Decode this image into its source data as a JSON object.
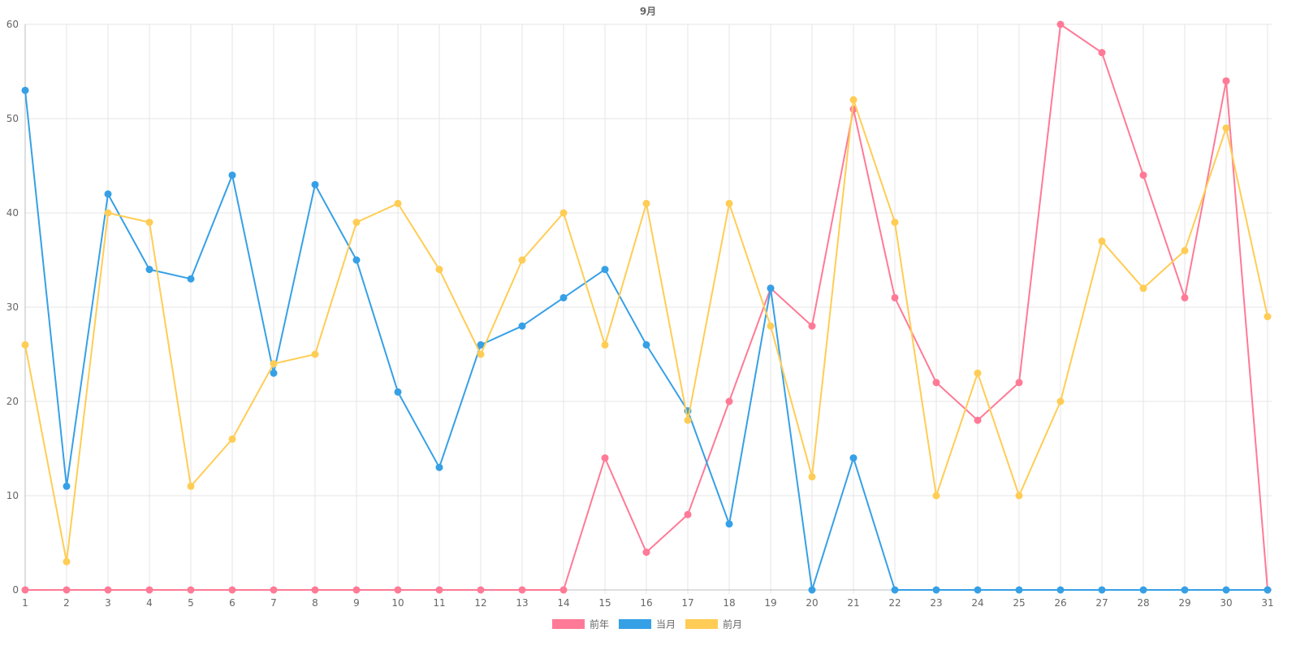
{
  "chart_data": {
    "type": "line",
    "title": "9月",
    "xlabel": "",
    "ylabel": "",
    "ylim": [
      0,
      60
    ],
    "yticks": [
      0,
      10,
      20,
      30,
      40,
      50,
      60
    ],
    "grid": true,
    "legend_position": "bottom",
    "categories": [
      "1",
      "2",
      "3",
      "4",
      "5",
      "6",
      "7",
      "8",
      "9",
      "10",
      "11",
      "12",
      "13",
      "14",
      "15",
      "16",
      "17",
      "18",
      "19",
      "20",
      "21",
      "22",
      "23",
      "24",
      "25",
      "26",
      "27",
      "28",
      "29",
      "30",
      "31"
    ],
    "series": [
      {
        "name": "前年",
        "color": "#ff7a96",
        "values": [
          0,
          0,
          0,
          0,
          0,
          0,
          0,
          0,
          0,
          0,
          0,
          0,
          0,
          0,
          14,
          4,
          8,
          20,
          32,
          28,
          51,
          31,
          22,
          18,
          22,
          60,
          57,
          44,
          31,
          54,
          0
        ]
      },
      {
        "name": "当月",
        "color": "#36a0e6",
        "values": [
          53,
          11,
          42,
          34,
          33,
          44,
          23,
          43,
          35,
          21,
          13,
          26,
          28,
          31,
          34,
          26,
          19,
          7,
          32,
          0,
          14,
          0,
          0,
          0,
          0,
          0,
          0,
          0,
          0,
          0,
          0
        ]
      },
      {
        "name": "前月",
        "color": "#ffcd55",
        "values": [
          26,
          3,
          40,
          39,
          11,
          16,
          24,
          25,
          39,
          41,
          34,
          25,
          35,
          40,
          26,
          41,
          18,
          41,
          28,
          12,
          52,
          39,
          10,
          23,
          10,
          20,
          37,
          32,
          36,
          49,
          29
        ]
      }
    ]
  }
}
